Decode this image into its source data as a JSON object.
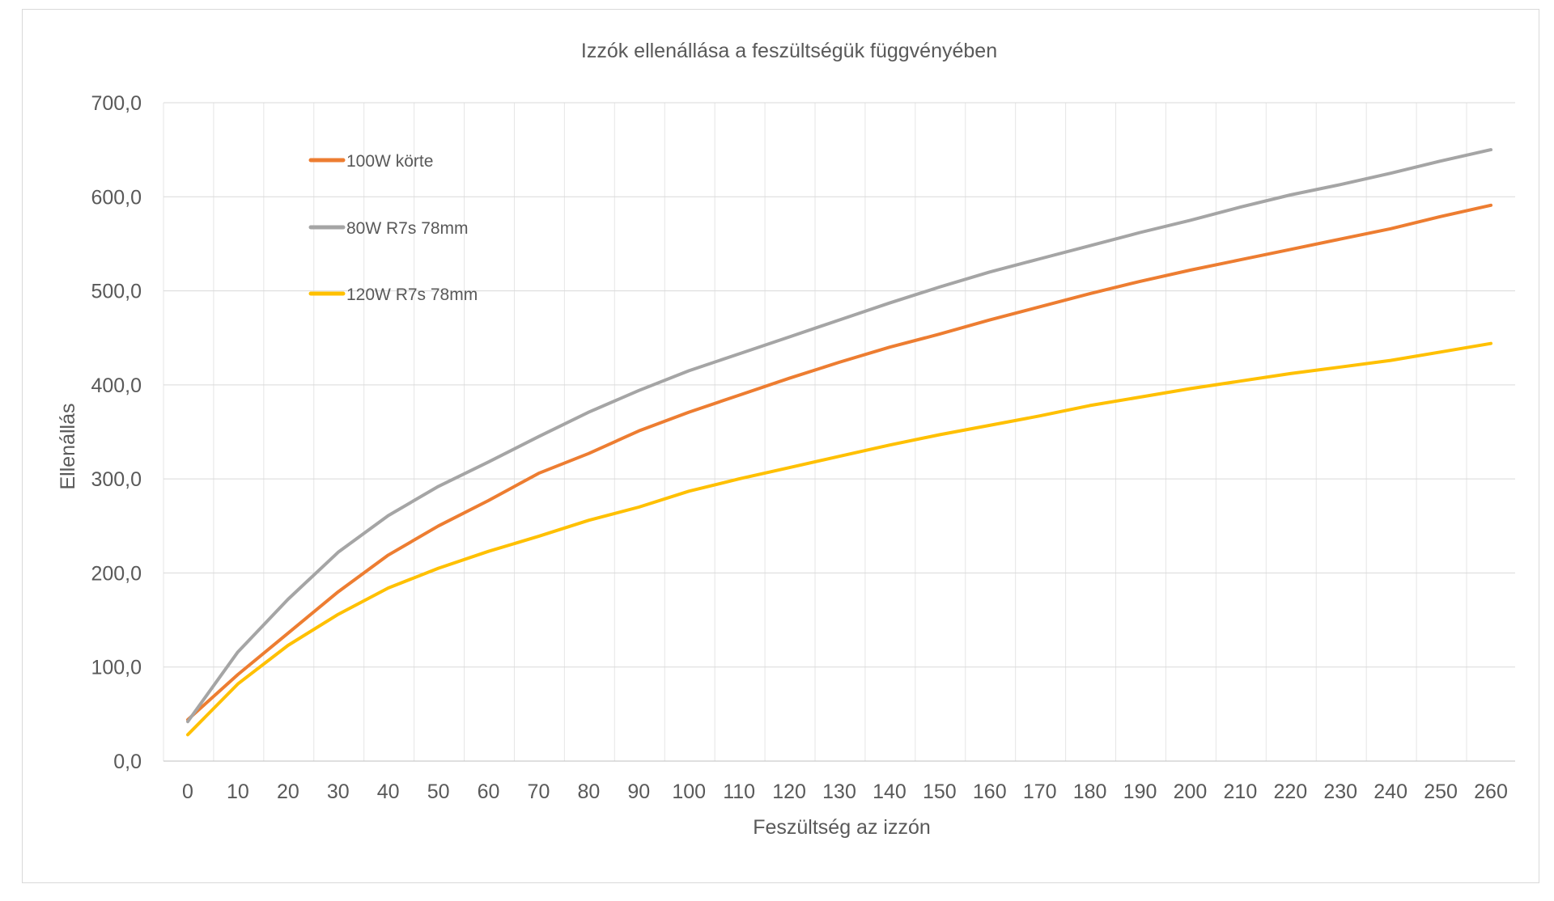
{
  "chart_data": {
    "type": "line",
    "title": "Izzók ellenállása a feszültségük függvényében",
    "xlabel": "Feszültség az izzón",
    "ylabel": "Ellenállás",
    "ylim": [
      0,
      700
    ],
    "yticks": [
      "0,0",
      "100,0",
      "200,0",
      "300,0",
      "400,0",
      "500,0",
      "600,0",
      "700,0"
    ],
    "grid": true,
    "legend_position": "top-left",
    "x": [
      0,
      10,
      20,
      30,
      40,
      50,
      60,
      70,
      80,
      90,
      100,
      110,
      120,
      130,
      140,
      150,
      160,
      170,
      180,
      190,
      200,
      210,
      220,
      230,
      240,
      250,
      260
    ],
    "series": [
      {
        "name": "100W körte",
        "color": "#ED7D31",
        "values": [
          44,
          92,
          136,
          180,
          219,
          250,
          277,
          306,
          327,
          351,
          371,
          389,
          407,
          424,
          440,
          454,
          469,
          483,
          497,
          510,
          522,
          533,
          544,
          555,
          566,
          579,
          591
        ]
      },
      {
        "name": "80W R7s 78mm",
        "color": "#A5A5A5",
        "values": [
          42,
          116,
          172,
          222,
          261,
          292,
          318,
          345,
          371,
          394,
          415,
          433,
          451,
          469,
          487,
          504,
          520,
          534,
          548,
          562,
          575,
          589,
          602,
          613,
          625,
          638,
          650
        ]
      },
      {
        "name": "120W R7s 78mm",
        "color": "#FFC000",
        "values": [
          28,
          82,
          123,
          156,
          184,
          205,
          223,
          239,
          256,
          270,
          287,
          300,
          312,
          324,
          336,
          347,
          357,
          367,
          378,
          387,
          396,
          404,
          412,
          419,
          426,
          435,
          444
        ]
      }
    ]
  }
}
